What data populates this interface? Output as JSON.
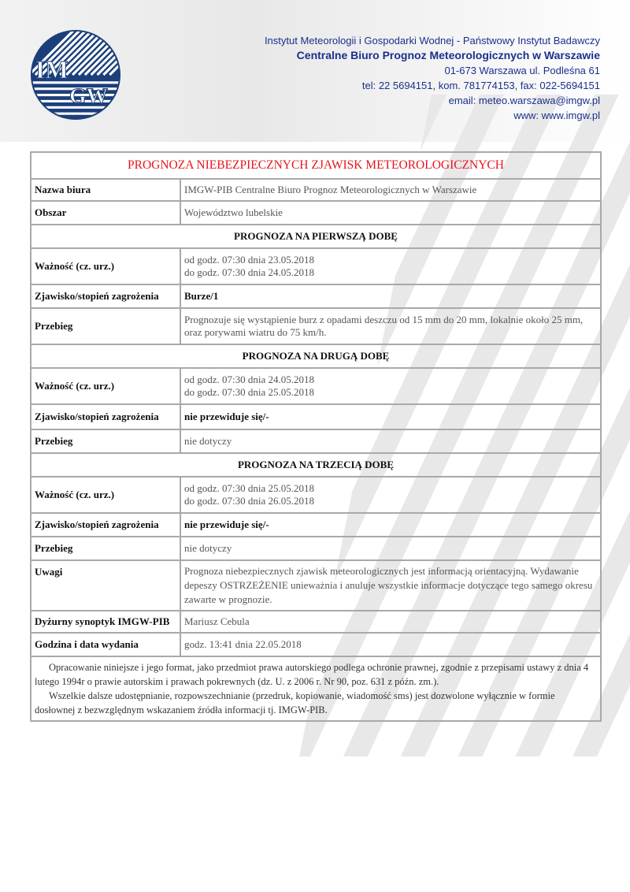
{
  "header": {
    "logo_text": "IMGW",
    "lines": [
      "Instytut Meteorologii i Gospodarki Wodnej - Państwowy Instytut Badawczy",
      "Centralne Biuro Prognoz Meteorologicznych w Warszawie",
      "01-673 Warszawa ul. Podleśna 61",
      "tel: 22 5694151, kom. 781774153, fax: 022-5694151",
      "email: meteo.warszawa@imgw.pl",
      "www: www.imgw.pl"
    ]
  },
  "doc": {
    "title": "PROGNOZA NIEBEZPIECZNYCH ZJAWISK METEOROLOGICZNYCH",
    "office_label": "Nazwa biura",
    "office": "IMGW-PIB Centralne Biuro Prognoz Meteorologicznych w Warszawie",
    "area_label": "Obszar",
    "area": "Województwo lubelskie",
    "days": [
      {
        "heading": "PROGNOZA NA PIERWSZĄ DOBĘ",
        "validity_label": "Ważność (cz. urz.)",
        "from": "od godz. 07:30 dnia 23.05.2018",
        "to": "do godz. 07:30 dnia 24.05.2018",
        "phenomenon_label": "Zjawisko/stopień zagrożenia",
        "phenomenon": "Burze/1",
        "course_label": "Przebieg",
        "course": "Prognozuje się wystąpienie burz z opadami deszczu od 15 mm do 20 mm, lokalnie około 25 mm, oraz porywami wiatru do 75 km/h."
      },
      {
        "heading": "PROGNOZA NA DRUGĄ DOBĘ",
        "validity_label": "Ważność (cz. urz.)",
        "from": "od godz. 07:30 dnia 24.05.2018",
        "to": "do godz. 07:30 dnia 25.05.2018",
        "phenomenon_label": "Zjawisko/stopień zagrożenia",
        "phenomenon": "nie przewiduje się/-",
        "course_label": "Przebieg",
        "course": "nie dotyczy"
      },
      {
        "heading": "PROGNOZA NA TRZECIĄ DOBĘ",
        "validity_label": "Ważność (cz. urz.)",
        "from": "od godz. 07:30 dnia 25.05.2018",
        "to": "do godz. 07:30 dnia 26.05.2018",
        "phenomenon_label": "Zjawisko/stopień zagrożenia",
        "phenomenon": "nie przewiduje się/-",
        "course_label": "Przebieg",
        "course": "nie dotyczy"
      }
    ],
    "notes_label": "Uwagi",
    "notes": "Prognoza niebezpiecznych zjawisk meteorologicznych jest informacją orientacyjną. Wydawanie depeszy OSTRZEŻENIE unieważnia i anuluje wszystkie informacje dotyczące tego samego okresu zawarte w prognozie.",
    "forecaster_label": "Dyżurny synoptyk IMGW-PIB",
    "forecaster": "Mariusz Cebula",
    "issued_label": "Godzina i data wydania",
    "issued": "godz. 13:41 dnia 22.05.2018",
    "footer": [
      "Opracowanie niniejsze i jego format, jako przedmiot prawa autorskiego podlega ochronie prawnej, zgodnie z przepisami ustawy z dnia 4 lutego 1994r o prawie autorskim i prawach pokrewnych (dz. U. z 2006 r. Nr 90, poz. 631 z późn. zm.).",
      "Wszelkie dalsze udostępnianie, rozpowszechnianie (przedruk, kopiowanie, wiadomość sms) jest dozwolone wyłącznie w formie dosłownej z bezwzględnym wskazaniem źródła informacji tj. IMGW-PIB."
    ]
  },
  "colors": {
    "brand": "#1b3f7a",
    "title_red": "#e8141b",
    "border": "#a9a9a9"
  }
}
